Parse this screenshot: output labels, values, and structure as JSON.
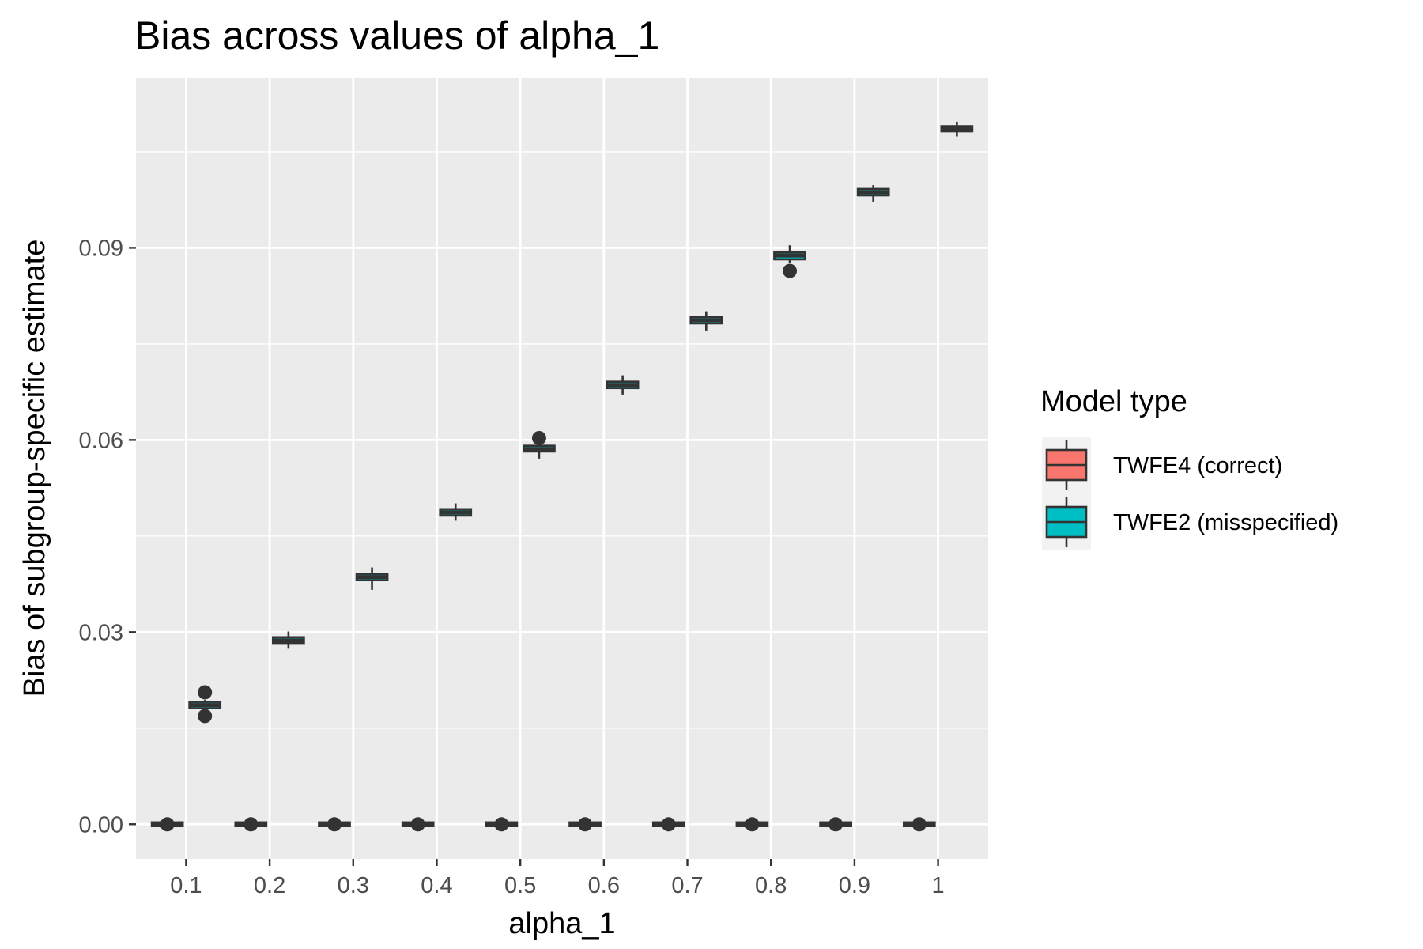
{
  "chart_data": {
    "type": "box",
    "title": "Bias across values of alpha_1",
    "xlabel": "alpha_1",
    "ylabel": "Bias of subgroup-specific estimate",
    "categories": [
      "0.1",
      "0.2",
      "0.3",
      "0.4",
      "0.5",
      "0.6",
      "0.7",
      "0.8",
      "0.9",
      "1"
    ],
    "ylim": [
      -0.0054,
      0.1166
    ],
    "yticks": [
      "0.00",
      "0.03",
      "0.06",
      "0.09"
    ],
    "ytick_values": [
      0,
      0.03,
      0.06,
      0.09
    ],
    "grid": true,
    "legend": {
      "title": "Model type",
      "position": "right",
      "items": [
        "TWFE4 (correct)",
        "TWFE2 (misspecified)"
      ]
    },
    "colors": {
      "TWFE4 (correct)": "#F8766D",
      "TWFE2 (misspecified)": "#00BFC4",
      "panel": "#EBEBEB",
      "grid": "#FFFFFF",
      "box": "#333333"
    },
    "series": [
      {
        "name": "TWFE4 (correct)",
        "boxes": [
          {
            "q1": -0.0003,
            "median": 0.0,
            "q3": 0.0003,
            "whisker_low": -0.0006,
            "whisker_high": 0.0006,
            "outliers": [
              0.0
            ]
          },
          {
            "q1": -0.0003,
            "median": 0.0,
            "q3": 0.0003,
            "whisker_low": -0.0006,
            "whisker_high": 0.0006,
            "outliers": [
              0.0
            ]
          },
          {
            "q1": -0.0003,
            "median": 0.0,
            "q3": 0.0003,
            "whisker_low": -0.0006,
            "whisker_high": 0.0006,
            "outliers": [
              0.0
            ]
          },
          {
            "q1": -0.0003,
            "median": 0.0,
            "q3": 0.0003,
            "whisker_low": -0.0006,
            "whisker_high": 0.0006,
            "outliers": [
              0.0
            ]
          },
          {
            "q1": -0.0003,
            "median": 0.0,
            "q3": 0.0003,
            "whisker_low": -0.0006,
            "whisker_high": 0.0006,
            "outliers": [
              0.0
            ]
          },
          {
            "q1": -0.0003,
            "median": 0.0,
            "q3": 0.0003,
            "whisker_low": -0.0006,
            "whisker_high": 0.0006,
            "outliers": [
              0.0
            ]
          },
          {
            "q1": -0.0003,
            "median": 0.0,
            "q3": 0.0003,
            "whisker_low": -0.0006,
            "whisker_high": 0.0006,
            "outliers": [
              0.0
            ]
          },
          {
            "q1": -0.0003,
            "median": 0.0,
            "q3": 0.0003,
            "whisker_low": -0.0006,
            "whisker_high": 0.0006,
            "outliers": [
              0.0
            ]
          },
          {
            "q1": -0.0003,
            "median": 0.0,
            "q3": 0.0003,
            "whisker_low": -0.0006,
            "whisker_high": 0.0006,
            "outliers": [
              0.0
            ]
          },
          {
            "q1": -0.0003,
            "median": 0.0,
            "q3": 0.0003,
            "whisker_low": -0.0006,
            "whisker_high": 0.0006,
            "outliers": [
              0.0
            ]
          }
        ]
      },
      {
        "name": "TWFE2 (misspecified)",
        "boxes": [
          {
            "q1": 0.0181,
            "median": 0.0186,
            "q3": 0.0191,
            "whisker_low": 0.0178,
            "whisker_high": 0.0194,
            "outliers": [
              0.0206,
              0.0169
            ]
          },
          {
            "q1": 0.0283,
            "median": 0.0287,
            "q3": 0.0292,
            "whisker_low": 0.0274,
            "whisker_high": 0.0301,
            "outliers": []
          },
          {
            "q1": 0.0381,
            "median": 0.0386,
            "q3": 0.0391,
            "whisker_low": 0.0366,
            "whisker_high": 0.0401,
            "outliers": []
          },
          {
            "q1": 0.0482,
            "median": 0.0487,
            "q3": 0.0492,
            "whisker_low": 0.0474,
            "whisker_high": 0.0501,
            "outliers": []
          },
          {
            "q1": 0.0582,
            "median": 0.0586,
            "q3": 0.0591,
            "whisker_low": 0.0571,
            "whisker_high": 0.0596,
            "outliers": [
              0.0603
            ]
          },
          {
            "q1": 0.0681,
            "median": 0.0686,
            "q3": 0.0691,
            "whisker_low": 0.0671,
            "whisker_high": 0.0701,
            "outliers": []
          },
          {
            "q1": 0.0782,
            "median": 0.0787,
            "q3": 0.0792,
            "whisker_low": 0.0771,
            "whisker_high": 0.0801,
            "outliers": []
          },
          {
            "q1": 0.0882,
            "median": 0.0888,
            "q3": 0.0893,
            "whisker_low": 0.0876,
            "whisker_high": 0.0904,
            "outliers": [
              0.0864
            ]
          },
          {
            "q1": 0.0982,
            "median": 0.0987,
            "q3": 0.0992,
            "whisker_low": 0.0971,
            "whisker_high": 0.0998,
            "outliers": []
          },
          {
            "q1": 0.1082,
            "median": 0.1086,
            "q3": 0.109,
            "whisker_low": 0.1074,
            "whisker_high": 0.1097,
            "outliers": []
          }
        ]
      }
    ]
  }
}
